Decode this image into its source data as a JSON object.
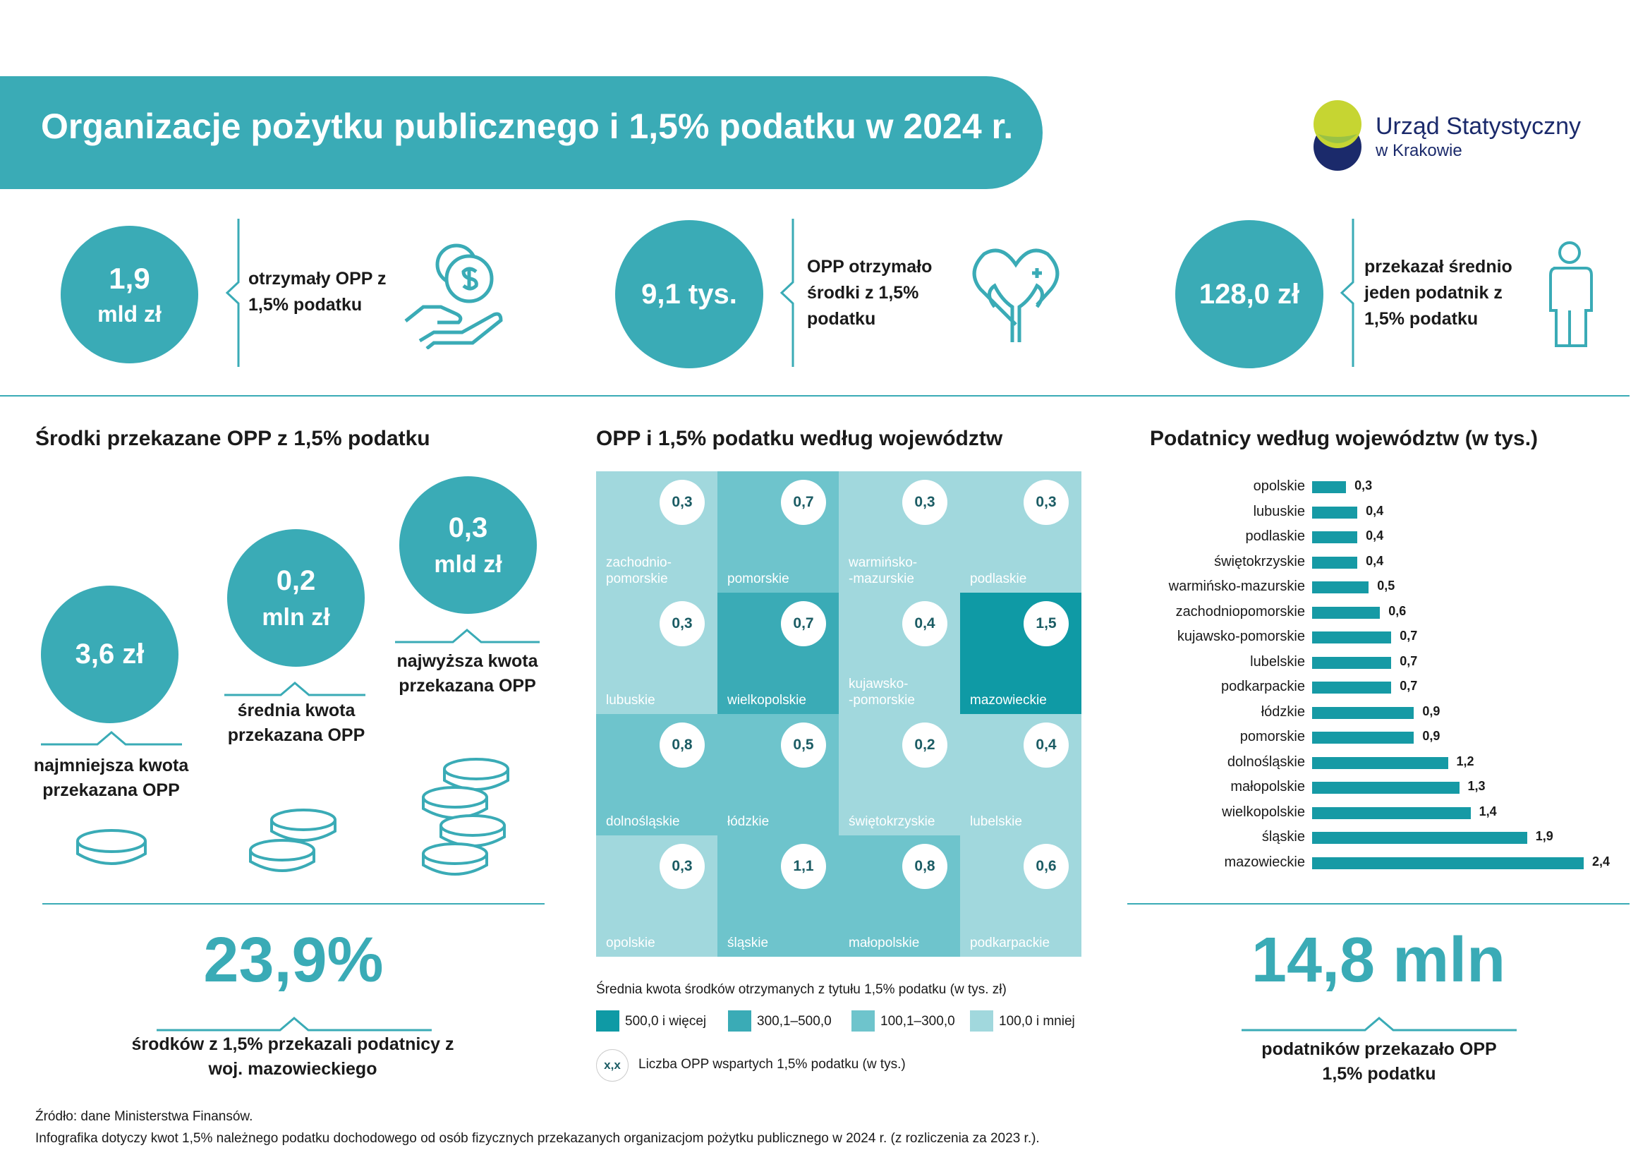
{
  "header": {
    "title": "Organizacje pożytku publicznego i 1,5% podatku w 2024 r."
  },
  "logo": {
    "name": "Urząd Statystyczny",
    "sub": "w Krakowie"
  },
  "colors": {
    "accent": "#3aabb6",
    "dark_teal": "#0f9aa5",
    "navy": "#1b2a6b",
    "lime": "#c6d532"
  },
  "stats": [
    {
      "value_line1": "1,9",
      "value_line2": "mld zł",
      "text": "otrzymały OPP z 1,5% podatku",
      "icon": "money-hand-icon"
    },
    {
      "value_line1": "9,1 tys.",
      "value_line2": "",
      "text": "OPP otrzymało środki z 1,5% podatku",
      "icon": "heart-hands-icon"
    },
    {
      "value_line1": "128,0 zł",
      "value_line2": "",
      "text": "przekazał średnio jeden podatnik z 1,5% podatku",
      "icon": "person-icon"
    }
  ],
  "funds": {
    "title": "Środki przekazane OPP z 1,5% podatku",
    "min": {
      "value": "3,6 zł",
      "caption": "najmniejsza kwota przekazana OPP"
    },
    "avg": {
      "value_line1": "0,2",
      "value_line2": "mln zł",
      "caption": "średnia kwota przekazana OPP"
    },
    "max": {
      "value_line1": "0,3",
      "value_line2": "mld zł",
      "caption": "najwyższa kwota przekazana OPP"
    },
    "share": {
      "value": "23,9%",
      "caption": "środków z 1,5% przekazali podatnicy z woj. mazowieckiego"
    }
  },
  "grid": {
    "title": "OPP i 1,5% podatku według województw",
    "legend_title": "Średnia kwota środków otrzymanych z tytułu 1,5% podatku (w tys. zł)",
    "legend": [
      {
        "label": "500,0 i więcej",
        "color": "#0f9aa5"
      },
      {
        "label": "300,1–500,0",
        "color": "#3aabb6"
      },
      {
        "label": "100,1–300,0",
        "color": "#6ec4cc"
      },
      {
        "label": "100,0 i mniej",
        "color": "#a1d8dd"
      }
    ],
    "legend_marker": "x,x",
    "legend_marker_text": "Liczba OPP wspartych 1,5% podatku (w tys.)"
  },
  "chart_data": {
    "type": "bar",
    "title": "Podatnicy według województw (w tys.)",
    "categories": [
      "opolskie",
      "lubuskie",
      "podlaskie",
      "świętokrzyskie",
      "warmińsko-mazurskie",
      "zachodniopomorskie",
      "kujawsko-pomorskie",
      "lubelskie",
      "podkarpackie",
      "łódzkie",
      "pomorskie",
      "dolnośląskie",
      "małopolskie",
      "wielkopolskie",
      "śląskie",
      "mazowieckie"
    ],
    "values": [
      0.3,
      0.4,
      0.4,
      0.4,
      0.5,
      0.6,
      0.7,
      0.7,
      0.7,
      0.9,
      0.9,
      1.2,
      1.3,
      1.4,
      1.9,
      2.4
    ],
    "value_labels": [
      "0,3",
      "0,4",
      "0,4",
      "0,4",
      "0,5",
      "0,6",
      "0,7",
      "0,7",
      "0,7",
      "0,9",
      "0,9",
      "1,2",
      "1,3",
      "1,4",
      "1,9",
      "2,4"
    ],
    "orientation": "horizontal"
  },
  "grid_data": {
    "tiles": [
      {
        "region": "zachodnio-\npomorskie",
        "value": "0,3",
        "shade": "#a1d8dd"
      },
      {
        "region": "pomorskie",
        "value": "0,7",
        "shade": "#6ec4cc"
      },
      {
        "region": "warmińsko-\n-mazurskie",
        "value": "0,3",
        "shade": "#a1d8dd"
      },
      {
        "region": "podlaskie",
        "value": "0,3",
        "shade": "#a1d8dd"
      },
      {
        "region": "lubuskie",
        "value": "0,3",
        "shade": "#a1d8dd"
      },
      {
        "region": "wielkopolskie",
        "value": "0,7",
        "shade": "#3aabb6"
      },
      {
        "region": "kujawsko-\n-pomorskie",
        "value": "0,4",
        "shade": "#a1d8dd"
      },
      {
        "region": "mazowieckie",
        "value": "1,5",
        "shade": "#0f9aa5"
      },
      {
        "region": "dolnośląskie",
        "value": "0,8",
        "shade": "#6ec4cc"
      },
      {
        "region": "łódzkie",
        "value": "0,5",
        "shade": "#6ec4cc"
      },
      {
        "region": "świętokrzyskie",
        "value": "0,2",
        "shade": "#a1d8dd"
      },
      {
        "region": "lubelskie",
        "value": "0,4",
        "shade": "#a1d8dd"
      },
      {
        "region": "opolskie",
        "value": "0,3",
        "shade": "#a1d8dd"
      },
      {
        "region": "śląskie",
        "value": "1,1",
        "shade": "#6ec4cc"
      },
      {
        "region": "małopolskie",
        "value": "0,8",
        "shade": "#6ec4cc"
      },
      {
        "region": "podkarpackie",
        "value": "0,6",
        "shade": "#a1d8dd"
      }
    ]
  },
  "taxpayers": {
    "value": "14,8 mln",
    "caption": "podatników przekazało OPP 1,5% podatku"
  },
  "footer": {
    "source": "Źródło: dane Ministerstwa Finansów.",
    "note": "Infografika dotyczy kwot 1,5% należnego podatku dochodowego od osób fizycznych przekazanych organizacjom pożytku publicznego w 2024 r. (z rozliczenia za 2023 r.)."
  }
}
